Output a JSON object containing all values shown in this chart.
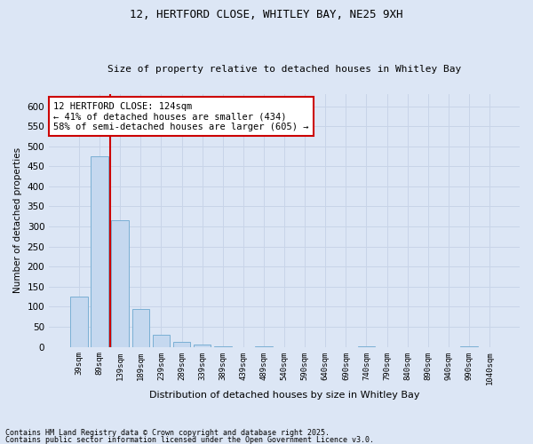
{
  "title_line1": "12, HERTFORD CLOSE, WHITLEY BAY, NE25 9XH",
  "title_line2": "Size of property relative to detached houses in Whitley Bay",
  "xlabel": "Distribution of detached houses by size in Whitley Bay",
  "ylabel": "Number of detached properties",
  "categories": [
    "39sqm",
    "89sqm",
    "139sqm",
    "189sqm",
    "239sqm",
    "289sqm",
    "339sqm",
    "389sqm",
    "439sqm",
    "489sqm",
    "540sqm",
    "590sqm",
    "640sqm",
    "690sqm",
    "740sqm",
    "790sqm",
    "840sqm",
    "890sqm",
    "940sqm",
    "990sqm",
    "1040sqm"
  ],
  "bar_values": [
    125,
    475,
    315,
    95,
    30,
    12,
    5,
    2,
    0,
    1,
    0,
    0,
    0,
    0,
    1,
    0,
    0,
    0,
    0,
    1,
    0
  ],
  "bar_color": "#c5d8ef",
  "bar_edgecolor": "#7aafd4",
  "grid_color": "#c8d4e8",
  "background_color": "#dce6f5",
  "vline_color": "#cc0000",
  "vline_x_idx": 1.5,
  "annotation_text": "12 HERTFORD CLOSE: 124sqm\n← 41% of detached houses are smaller (434)\n58% of semi-detached houses are larger (605) →",
  "annotation_box_facecolor": "white",
  "annotation_box_edgecolor": "#cc0000",
  "ylim": [
    0,
    630
  ],
  "yticks": [
    0,
    50,
    100,
    150,
    200,
    250,
    300,
    350,
    400,
    450,
    500,
    550,
    600
  ],
  "footer_line1": "Contains HM Land Registry data © Crown copyright and database right 2025.",
  "footer_line2": "Contains public sector information licensed under the Open Government Licence v3.0."
}
